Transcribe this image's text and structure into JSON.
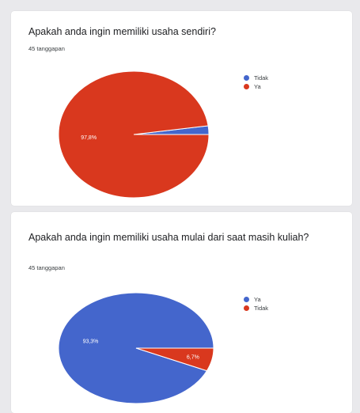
{
  "chart_data": [
    {
      "type": "pie",
      "title": "Apakah anda ingin memiliki usaha sendiri?",
      "subtitle": "45 tanggapan",
      "slices": [
        {
          "name": "Tidak",
          "value": 2.2,
          "color": "#4466cc",
          "label": ""
        },
        {
          "name": "Ya",
          "value": 97.8,
          "color": "#d9381e",
          "label": "97,8%"
        }
      ],
      "legend_position": "right"
    },
    {
      "type": "pie",
      "title": "Apakah anda ingin memiliki usaha mulai dari saat masih kuliah?",
      "subtitle": "45 tanggapan",
      "slices": [
        {
          "name": "Ya",
          "value": 93.3,
          "color": "#4466cc",
          "label": "93,3%"
        },
        {
          "name": "Tidak",
          "value": 6.7,
          "color": "#d9381e",
          "label": "6,7%"
        }
      ],
      "legend_position": "right"
    }
  ]
}
